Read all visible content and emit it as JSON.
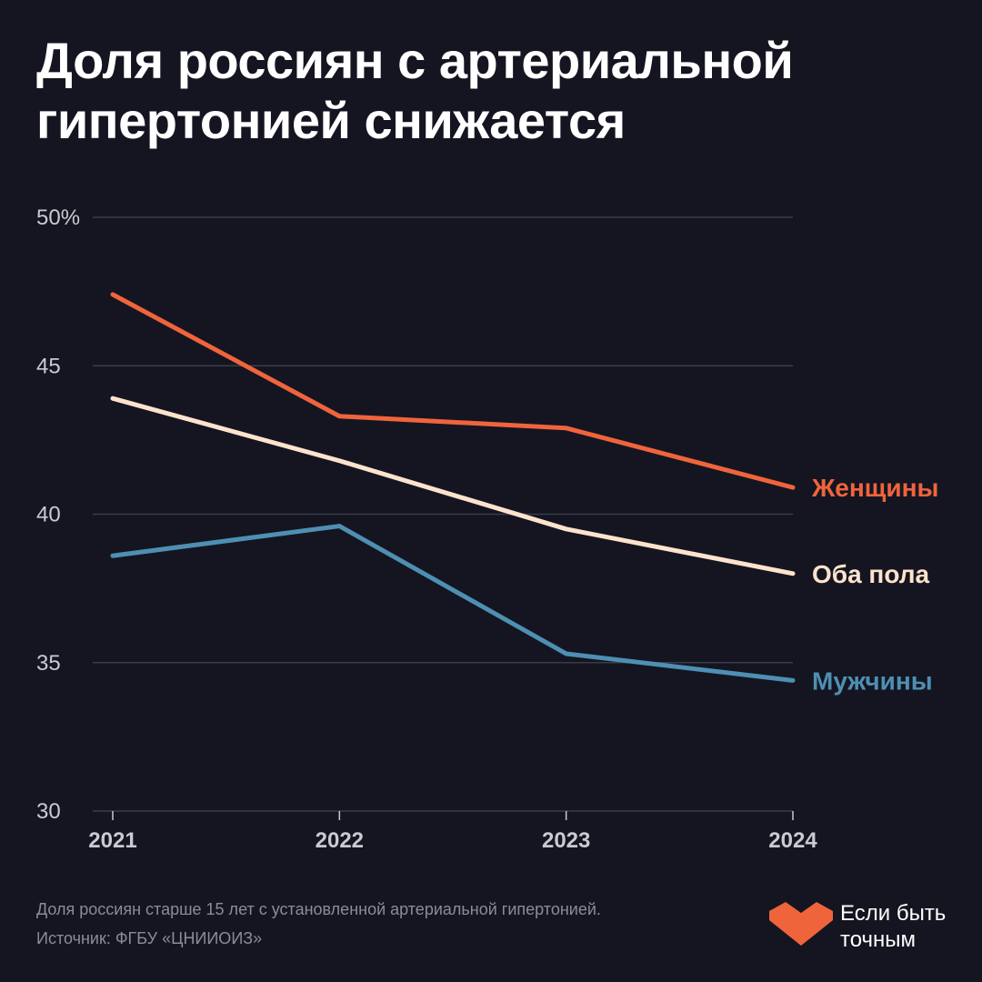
{
  "title": {
    "line1": "Доля россиян с артериальной",
    "line2": "гипертонией снижается"
  },
  "chart_data": {
    "type": "line",
    "title": "Доля россиян с артериальной гипертонией снижается",
    "x": [
      "2021",
      "2022",
      "2023",
      "2024"
    ],
    "ylim": [
      30,
      50
    ],
    "yticks": [
      {
        "value": 50,
        "label": "50%"
      },
      {
        "value": 45,
        "label": "45"
      },
      {
        "value": 40,
        "label": "40"
      },
      {
        "value": 35,
        "label": "35"
      },
      {
        "value": 30,
        "label": "30"
      }
    ],
    "grid": true,
    "series": [
      {
        "name": "Женщины",
        "values": [
          47.4,
          43.3,
          42.9,
          40.9
        ],
        "color": "#f0643c"
      },
      {
        "name": "Оба пола",
        "values": [
          43.9,
          41.8,
          39.5,
          38.0
        ],
        "color": "#fde3cc"
      },
      {
        "name": "Мужчины",
        "values": [
          38.6,
          39.6,
          35.3,
          34.4
        ],
        "color": "#4e8fb2"
      }
    ]
  },
  "footnote": {
    "description": "Доля россиян старше 15 лет с установленной артериальной гипертонией.",
    "source": "Источник: ФГБУ «ЦНИИОИЗ»"
  },
  "brand": {
    "line1": "Если быть",
    "line2": "точным",
    "icon": "heart-logo-icon",
    "color": "#f0643c"
  },
  "colors": {
    "background": "#141521",
    "grid": "#3a3c4a",
    "axis_text": "#c9cad2"
  }
}
